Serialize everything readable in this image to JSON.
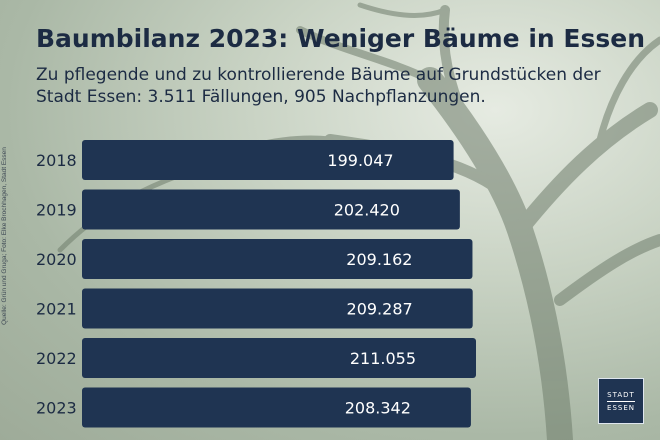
{
  "title": "Baumbilanz 2023: Weniger Bäume in Essen",
  "subtitle": "Zu pflegende und zu kontrollierende Bäume auf Grundstücken der Stadt Essen: 3.511 Fällungen, 905 Nachpflanzungen.",
  "source": "Quelle: Grün und Gruga; Foto: Elke Brochhagen, Stadt Essen",
  "logo": {
    "line1": "STADT",
    "line2": "ESSEN"
  },
  "colors": {
    "bar": "#1f3452",
    "text_dark": "#1c2b43",
    "bar_label": "#ffffff"
  },
  "chart_data": {
    "type": "bar",
    "orientation": "horizontal",
    "categories": [
      "2018",
      "2019",
      "2020",
      "2021",
      "2022",
      "2023"
    ],
    "values": [
      199047,
      202420,
      209162,
      209287,
      211055,
      208342
    ],
    "value_labels": [
      "199.047",
      "202.420",
      "209.162",
      "209.287",
      "211.055",
      "208.342"
    ],
    "xlim": [
      0,
      211055
    ],
    "grid": false,
    "legend": "none"
  }
}
